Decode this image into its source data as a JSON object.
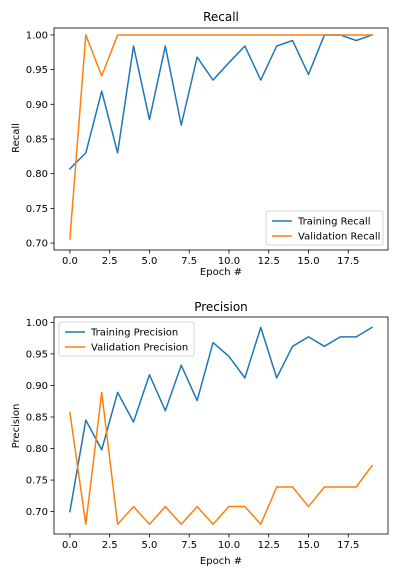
{
  "chart_data": [
    {
      "type": "line",
      "title": "Recall",
      "xlabel": "Epoch #",
      "ylabel": "Recall",
      "x": [
        0,
        1,
        2,
        3,
        4,
        5,
        6,
        7,
        8,
        9,
        10,
        11,
        12,
        13,
        14,
        15,
        16,
        17,
        18,
        19
      ],
      "xlim": [
        -1,
        20
      ],
      "ylim": [
        0.69,
        1.01
      ],
      "xticks": [
        0,
        2.5,
        5,
        7.5,
        10,
        12.5,
        15,
        17.5
      ],
      "xtick_labels": [
        "0.0",
        "2.5",
        "5.0",
        "7.5",
        "10.0",
        "12.5",
        "15.0",
        "17.5"
      ],
      "yticks": [
        0.7,
        0.75,
        0.8,
        0.85,
        0.9,
        0.95,
        1.0
      ],
      "ytick_labels": [
        "0.70",
        "0.75",
        "0.80",
        "0.85",
        "0.90",
        "0.95",
        "1.00"
      ],
      "grid": false,
      "legend_position": "lower-right",
      "series": [
        {
          "name": "Training Recall",
          "color": "#1f77b4",
          "values": [
            0.807,
            0.83,
            0.919,
            0.83,
            0.984,
            0.878,
            0.984,
            0.87,
            0.968,
            0.935,
            0.96,
            0.984,
            0.935,
            0.984,
            0.992,
            0.943,
            1.0,
            1.0,
            0.992,
            1.0
          ]
        },
        {
          "name": "Validation Recall",
          "color": "#ff7f0e",
          "values": [
            0.706,
            1.0,
            0.941,
            1.0,
            1.0,
            1.0,
            1.0,
            1.0,
            1.0,
            1.0,
            1.0,
            1.0,
            1.0,
            1.0,
            1.0,
            1.0,
            1.0,
            1.0,
            1.0,
            1.0
          ]
        }
      ]
    },
    {
      "type": "line",
      "title": "Precision",
      "xlabel": "Epoch #",
      "ylabel": "Precision",
      "x": [
        0,
        1,
        2,
        3,
        4,
        5,
        6,
        7,
        8,
        9,
        10,
        11,
        12,
        13,
        14,
        15,
        16,
        17,
        18,
        19
      ],
      "xlim": [
        -1,
        20
      ],
      "ylim": [
        0.6645,
        1.0085
      ],
      "xticks": [
        0,
        2.5,
        5,
        7.5,
        10,
        12.5,
        15,
        17.5
      ],
      "xtick_labels": [
        "0.0",
        "2.5",
        "5.0",
        "7.5",
        "10.0",
        "12.5",
        "15.0",
        "17.5"
      ],
      "yticks": [
        0.7,
        0.75,
        0.8,
        0.85,
        0.9,
        0.95,
        1.0
      ],
      "ytick_labels": [
        "0.70",
        "0.75",
        "0.80",
        "0.85",
        "0.90",
        "0.95",
        "1.00"
      ],
      "grid": false,
      "legend_position": "upper-left",
      "series": [
        {
          "name": "Training Precision",
          "color": "#1f77b4",
          "values": [
            0.7,
            0.845,
            0.798,
            0.889,
            0.842,
            0.917,
            0.86,
            0.932,
            0.876,
            0.968,
            0.946,
            0.912,
            0.992,
            0.912,
            0.962,
            0.977,
            0.962,
            0.977,
            0.977,
            0.992
          ]
        },
        {
          "name": "Validation Precision",
          "color": "#ff7f0e",
          "values": [
            0.857,
            0.68,
            0.889,
            0.68,
            0.708,
            0.68,
            0.708,
            0.68,
            0.708,
            0.68,
            0.708,
            0.708,
            0.68,
            0.739,
            0.739,
            0.708,
            0.739,
            0.739,
            0.739,
            0.773
          ]
        }
      ]
    }
  ]
}
